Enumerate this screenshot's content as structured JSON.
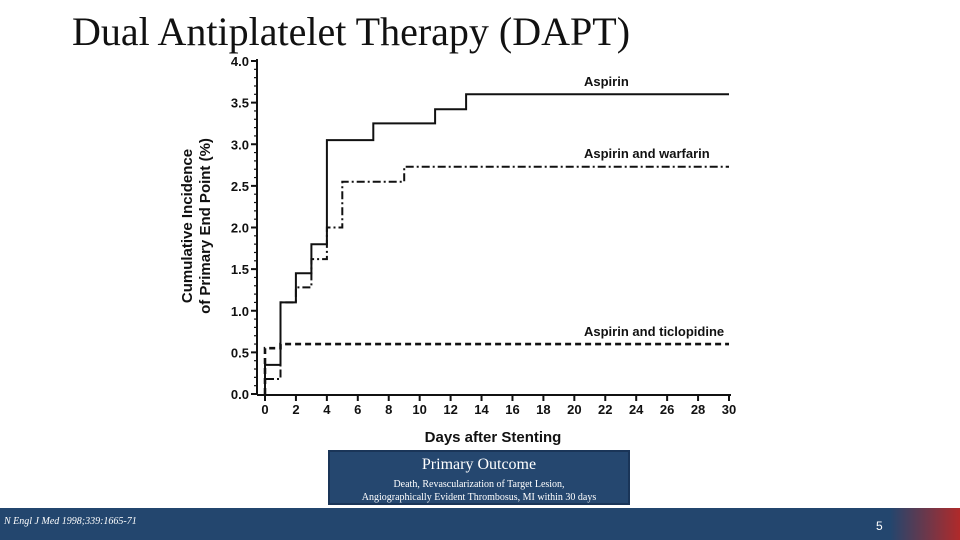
{
  "slide": {
    "title": "Dual Antiplatelet Therapy (DAPT)",
    "citation": "N Engl J Med 1998;339:1665-71",
    "page_number": "5"
  },
  "outcome_box": {
    "title": "Primary Outcome",
    "subtitle_line1": "Death, Revascularization of Target Lesion,",
    "subtitle_line2": "Angiographically Evident Thrombosus, MI within 30 days"
  },
  "colors": {
    "box_fill": "#25476f",
    "footer": "#23466e",
    "accent_red": "#b02a2a",
    "series": "#111111"
  },
  "chart_data": {
    "type": "line",
    "xlabel": "Days after Stenting",
    "ylabel_line1": "Cumulative Incidence",
    "ylabel_line2": "of Primary End Point (%)",
    "xlim": [
      0,
      30
    ],
    "ylim": [
      0,
      4.0
    ],
    "x_ticks": [
      0,
      2,
      4,
      6,
      8,
      10,
      12,
      14,
      16,
      18,
      20,
      22,
      24,
      26,
      28,
      30
    ],
    "y_ticks": [
      "0.0",
      "0.5",
      "1.0",
      "1.5",
      "2.0",
      "2.5",
      "3.0",
      "3.5",
      "4.0"
    ],
    "grid": false,
    "series": [
      {
        "name": "Aspirin",
        "style": "solid",
        "step": true,
        "points": [
          [
            0,
            0
          ],
          [
            0,
            0.35
          ],
          [
            1,
            0.35
          ],
          [
            1,
            1.1
          ],
          [
            2,
            1.1
          ],
          [
            2,
            1.45
          ],
          [
            3,
            1.45
          ],
          [
            3,
            1.8
          ],
          [
            4,
            1.8
          ],
          [
            4,
            3.05
          ],
          [
            7,
            3.05
          ],
          [
            7,
            3.25
          ],
          [
            11,
            3.25
          ],
          [
            11,
            3.42
          ],
          [
            13,
            3.42
          ],
          [
            13,
            3.6
          ],
          [
            30,
            3.6
          ]
        ]
      },
      {
        "name": "Aspirin and warfarin",
        "style": "dashdot",
        "step": true,
        "points": [
          [
            0,
            0
          ],
          [
            0,
            0.18
          ],
          [
            1,
            0.18
          ],
          [
            1,
            1.1
          ],
          [
            2,
            1.1
          ],
          [
            2,
            1.28
          ],
          [
            3,
            1.28
          ],
          [
            3,
            1.62
          ],
          [
            4,
            1.62
          ],
          [
            4,
            2.0
          ],
          [
            5,
            2.0
          ],
          [
            5,
            2.55
          ],
          [
            9,
            2.55
          ],
          [
            9,
            2.73
          ],
          [
            30,
            2.73
          ]
        ]
      },
      {
        "name": "Aspirin and ticlopidine",
        "style": "dashed",
        "step": true,
        "points": [
          [
            0,
            0
          ],
          [
            0,
            0.55
          ],
          [
            1,
            0.55
          ],
          [
            1,
            0.6
          ],
          [
            30,
            0.6
          ]
        ]
      }
    ]
  }
}
